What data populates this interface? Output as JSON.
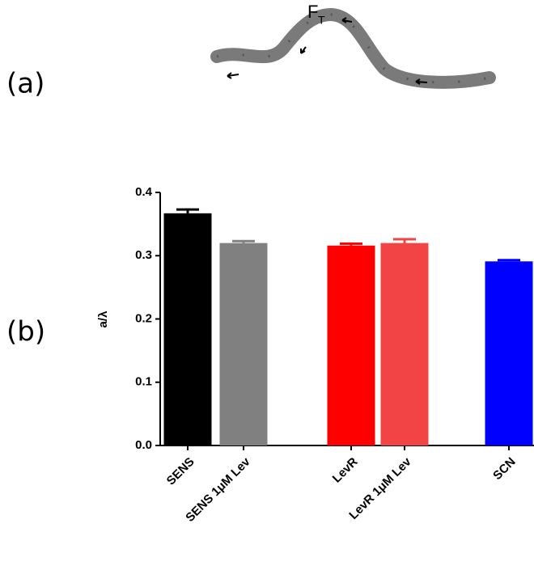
{
  "panel_a": {
    "label": "(a)",
    "force_label": "F",
    "force_subscript": "T"
  },
  "chart_data": {
    "type": "bar",
    "panel_label": "(b)",
    "y_label": "a/λ",
    "categories": [
      "SENS",
      "SENS 1μM Lev",
      "LevR",
      "LevR 1μM Lev",
      "SCN"
    ],
    "values": [
      0.367,
      0.32,
      0.316,
      0.32,
      0.291
    ],
    "errors": [
      0.006,
      0.003,
      0.003,
      0.006,
      0.002
    ],
    "colors": [
      "#000000",
      "#808080",
      "#ff0000",
      "#f24444",
      "#0000ff"
    ],
    "ylim": [
      0,
      0.4
    ],
    "yticks": [
      {
        "value": 0,
        "label": "0.0"
      },
      0.1,
      0.2,
      0.3,
      0.4
    ]
  }
}
